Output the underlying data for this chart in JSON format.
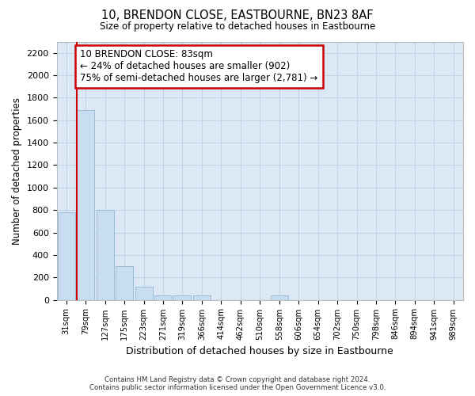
{
  "title": "10, BRENDON CLOSE, EASTBOURNE, BN23 8AF",
  "subtitle": "Size of property relative to detached houses in Eastbourne",
  "xlabel": "Distribution of detached houses by size in Eastbourne",
  "ylabel": "Number of detached properties",
  "footer_line1": "Contains HM Land Registry data © Crown copyright and database right 2024.",
  "footer_line2": "Contains public sector information licensed under the Open Government Licence v3.0.",
  "bar_color": "#c9ddf0",
  "bar_edge_color": "#9bbcd8",
  "grid_color": "#c0d4e8",
  "background_color": "#dce9f5",
  "annotation_box_color": "#cc0000",
  "vline_color": "#cc0000",
  "categories": [
    "31sqm",
    "79sqm",
    "127sqm",
    "175sqm",
    "223sqm",
    "271sqm",
    "319sqm",
    "366sqm",
    "414sqm",
    "462sqm",
    "510sqm",
    "558sqm",
    "606sqm",
    "654sqm",
    "702sqm",
    "750sqm",
    "798sqm",
    "846sqm",
    "894sqm",
    "941sqm",
    "989sqm"
  ],
  "values": [
    780,
    1690,
    800,
    300,
    115,
    40,
    40,
    40,
    0,
    0,
    0,
    40,
    0,
    0,
    0,
    0,
    0,
    0,
    0,
    0,
    0
  ],
  "ylim": [
    0,
    2300
  ],
  "yticks": [
    0,
    200,
    400,
    600,
    800,
    1000,
    1200,
    1400,
    1600,
    1800,
    2000,
    2200
  ],
  "annotation_text": "10 BRENDON CLOSE: 83sqm\n← 24% of detached houses are smaller (902)\n75% of semi-detached houses are larger (2,781) →",
  "figsize": [
    6.0,
    5.0
  ],
  "dpi": 100
}
